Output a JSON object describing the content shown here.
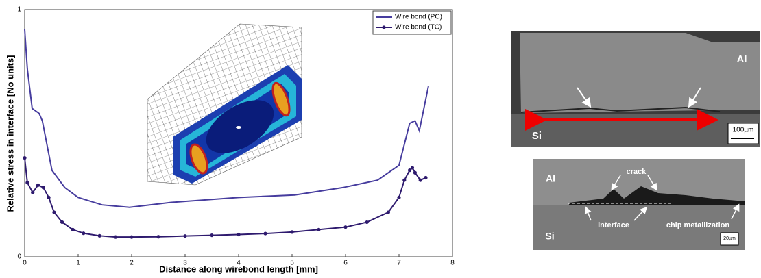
{
  "chart_data": {
    "type": "line",
    "x_label": "Distance along wirebond length [mm]",
    "y_label": "Relative stress in interface [No units]",
    "xlim": [
      0,
      8
    ],
    "xticks": [
      0,
      1,
      2,
      3,
      4,
      5,
      6,
      7,
      8
    ],
    "ylim": [
      0,
      1
    ],
    "yticks": [
      0,
      1
    ],
    "legend": "top-right",
    "series": [
      {
        "name": "Wire bond (PC)",
        "color": "#463c9e",
        "marker": false,
        "x": [
          0,
          0.05,
          0.14,
          0.27,
          0.33,
          0.51,
          0.75,
          1.0,
          1.45,
          1.96,
          2.73,
          4.0,
          5.05,
          5.95,
          6.6,
          7.0,
          7.2,
          7.3,
          7.38,
          7.55
        ],
        "values": [
          0.92,
          0.76,
          0.6,
          0.58,
          0.55,
          0.35,
          0.28,
          0.24,
          0.21,
          0.2,
          0.22,
          0.24,
          0.25,
          0.28,
          0.31,
          0.37,
          0.54,
          0.55,
          0.51,
          0.69
        ]
      },
      {
        "name": "Wire bond (TC)",
        "color": "#2e1a6e",
        "marker": true,
        "x": [
          0,
          0.05,
          0.15,
          0.25,
          0.35,
          0.45,
          0.55,
          0.7,
          0.9,
          1.1,
          1.4,
          1.7,
          2.0,
          2.5,
          3.0,
          3.5,
          4.0,
          4.5,
          5.0,
          5.5,
          6.0,
          6.4,
          6.8,
          7.0,
          7.1,
          7.2,
          7.25,
          7.3,
          7.4,
          7.5
        ],
        "values": [
          0.4,
          0.3,
          0.26,
          0.29,
          0.28,
          0.24,
          0.18,
          0.14,
          0.11,
          0.095,
          0.085,
          0.08,
          0.08,
          0.081,
          0.084,
          0.087,
          0.09,
          0.094,
          0.1,
          0.11,
          0.12,
          0.14,
          0.18,
          0.24,
          0.31,
          0.35,
          0.36,
          0.34,
          0.31,
          0.32
        ]
      }
    ]
  },
  "micrographs": {
    "top": {
      "material_top": "Al",
      "material_bottom": "Si",
      "scale": "100µm"
    },
    "bottom": {
      "material_top": "Al",
      "material_bottom": "Si",
      "crack": "crack",
      "interface": "interface",
      "metallization": "chip metallization",
      "scale": "20µm"
    }
  }
}
